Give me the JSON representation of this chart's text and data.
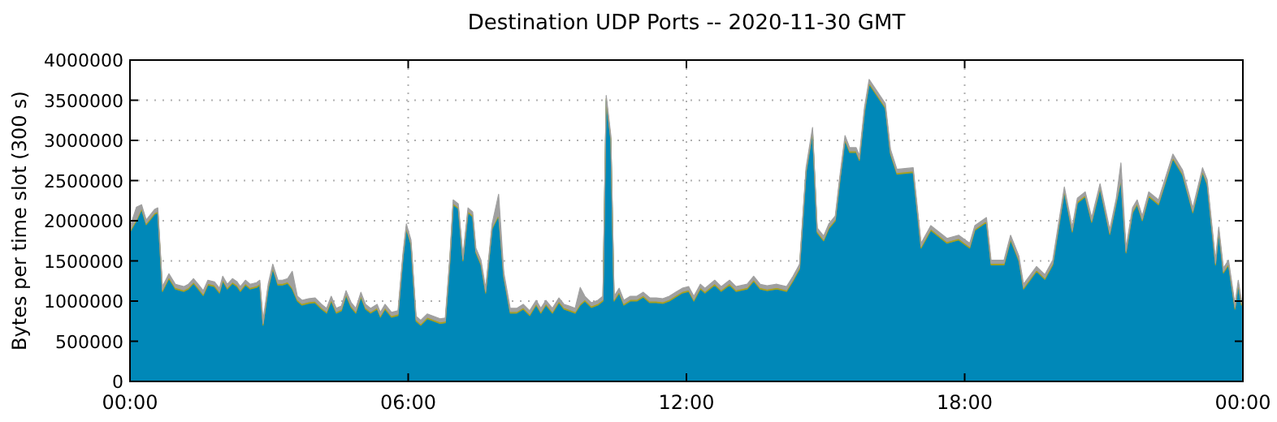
{
  "chart_data": {
    "type": "area",
    "stacked": true,
    "title": "Destination UDP Ports -- 2020-11-30 GMT",
    "ylabel": "Bytes per time slot (300 s)",
    "x": [
      0,
      0.14,
      0.25,
      0.35,
      0.53,
      0.6,
      0.7,
      0.84,
      0.98,
      1.16,
      1.26,
      1.37,
      1.47,
      1.58,
      1.68,
      1.82,
      1.93,
      2.0,
      2.1,
      2.21,
      2.31,
      2.38,
      2.49,
      2.59,
      2.73,
      2.8,
      2.87,
      2.98,
      3.08,
      3.19,
      3.29,
      3.4,
      3.5,
      3.61,
      3.71,
      3.85,
      3.99,
      4.13,
      4.24,
      4.34,
      4.45,
      4.56,
      4.66,
      4.77,
      4.87,
      4.98,
      5.08,
      5.19,
      5.33,
      5.4,
      5.5,
      5.64,
      5.78,
      5.89,
      5.96,
      6.06,
      6.17,
      6.27,
      6.41,
      6.55,
      6.69,
      6.8,
      6.9,
      6.97,
      7.08,
      7.18,
      7.29,
      7.39,
      7.46,
      7.57,
      7.67,
      7.81,
      7.95,
      8.06,
      8.2,
      8.34,
      8.48,
      8.62,
      8.76,
      8.86,
      8.97,
      9.11,
      9.25,
      9.36,
      9.46,
      9.6,
      9.71,
      9.81,
      9.95,
      10.09,
      10.2,
      10.27,
      10.37,
      10.44,
      10.55,
      10.65,
      10.79,
      10.93,
      11.07,
      11.21,
      11.35,
      11.49,
      11.63,
      11.77,
      11.91,
      12.05,
      12.16,
      12.3,
      12.4,
      12.61,
      12.75,
      12.93,
      13.07,
      13.31,
      13.45,
      13.59,
      13.74,
      13.95,
      14.16,
      14.3,
      14.44,
      14.58,
      14.72,
      14.82,
      14.96,
      15.07,
      15.21,
      15.31,
      15.42,
      15.52,
      15.66,
      15.73,
      15.84,
      15.94,
      16.29,
      16.4,
      16.54,
      16.89,
      17.06,
      17.27,
      17.62,
      17.87,
      18.11,
      18.22,
      18.47,
      18.57,
      18.85,
      18.99,
      19.17,
      19.27,
      19.55,
      19.73,
      19.9,
      20.15,
      20.32,
      20.43,
      20.6,
      20.74,
      20.92,
      21.13,
      21.27,
      21.37,
      21.48,
      21.62,
      21.72,
      21.83,
      21.97,
      22.18,
      22.49,
      22.7,
      22.92,
      23.13,
      23.23,
      23.41,
      23.48,
      23.58,
      23.69,
      23.83,
      23.9,
      23.97
    ],
    "series": [
      {
        "color": "#0088b8",
        "values": [
          1860000,
          2000000,
          2140000,
          1950000,
          2080000,
          2100000,
          1120000,
          1280000,
          1150000,
          1120000,
          1150000,
          1220000,
          1150000,
          1070000,
          1200000,
          1180000,
          1100000,
          1250000,
          1150000,
          1220000,
          1180000,
          1120000,
          1200000,
          1150000,
          1170000,
          1200000,
          700000,
          1150000,
          1400000,
          1200000,
          1200000,
          1220000,
          1150000,
          1000000,
          950000,
          970000,
          980000,
          900000,
          850000,
          1000000,
          850000,
          880000,
          1070000,
          920000,
          850000,
          1050000,
          900000,
          850000,
          900000,
          800000,
          900000,
          800000,
          820000,
          1550000,
          1900000,
          1700000,
          750000,
          700000,
          780000,
          750000,
          720000,
          730000,
          1500000,
          2200000,
          2150000,
          1500000,
          2100000,
          2050000,
          1600000,
          1450000,
          1100000,
          1900000,
          2060000,
          1300000,
          850000,
          850000,
          900000,
          820000,
          950000,
          850000,
          950000,
          850000,
          980000,
          900000,
          880000,
          850000,
          950000,
          1000000,
          920000,
          950000,
          1000000,
          3500000,
          3000000,
          1000000,
          1100000,
          950000,
          1000000,
          1000000,
          1050000,
          980000,
          980000,
          970000,
          1000000,
          1050000,
          1100000,
          1120000,
          1000000,
          1150000,
          1100000,
          1200000,
          1120000,
          1200000,
          1120000,
          1150000,
          1250000,
          1150000,
          1130000,
          1150000,
          1120000,
          1250000,
          1400000,
          2600000,
          3100000,
          1850000,
          1750000,
          1900000,
          2000000,
          2500000,
          3000000,
          2850000,
          2850000,
          2750000,
          3350000,
          3700000,
          3400000,
          2830000,
          2580000,
          2600000,
          1660000,
          1880000,
          1720000,
          1760000,
          1660000,
          1880000,
          1980000,
          1450000,
          1450000,
          1760000,
          1500000,
          1150000,
          1370000,
          1270000,
          1450000,
          2360000,
          1860000,
          2220000,
          2300000,
          1980000,
          2400000,
          1830000,
          2220000,
          2500000,
          1600000,
          2100000,
          2200000,
          2000000,
          2300000,
          2200000,
          2770000,
          2570000,
          2100000,
          2600000,
          2450000,
          1450000,
          1860000,
          1350000,
          1450000,
          900000,
          1200000,
          950000
        ]
      },
      {
        "color": "#a8a020",
        "values": [
          20000,
          20000,
          20000,
          20000,
          20000,
          20000,
          20000,
          20000,
          20000,
          20000,
          20000,
          20000,
          20000,
          20000,
          20000,
          20000,
          20000,
          20000,
          20000,
          20000,
          20000,
          20000,
          20000,
          20000,
          20000,
          20000,
          20000,
          20000,
          20000,
          20000,
          20000,
          20000,
          20000,
          20000,
          20000,
          20000,
          20000,
          20000,
          20000,
          20000,
          20000,
          20000,
          20000,
          20000,
          20000,
          20000,
          20000,
          20000,
          20000,
          20000,
          20000,
          20000,
          20000,
          20000,
          20000,
          20000,
          20000,
          20000,
          20000,
          20000,
          20000,
          20000,
          20000,
          20000,
          20000,
          20000,
          20000,
          20000,
          20000,
          20000,
          20000,
          20000,
          20000,
          20000,
          20000,
          20000,
          20000,
          20000,
          20000,
          20000,
          20000,
          20000,
          20000,
          20000,
          20000,
          20000,
          20000,
          20000,
          20000,
          20000,
          20000,
          20000,
          20000,
          20000,
          20000,
          20000,
          20000,
          20000,
          20000,
          20000,
          20000,
          20000,
          20000,
          20000,
          20000,
          20000,
          20000,
          20000,
          20000,
          20000,
          20000,
          20000,
          20000,
          20000,
          20000,
          20000,
          20000,
          20000,
          20000,
          20000,
          20000,
          20000,
          20000,
          20000,
          20000,
          20000,
          20000,
          20000,
          20000,
          20000,
          20000,
          20000,
          20000,
          20000,
          20000,
          20000,
          20000,
          20000,
          20000,
          20000,
          20000,
          20000,
          20000,
          20000,
          20000,
          20000,
          20000,
          20000,
          20000,
          20000,
          20000,
          20000,
          20000,
          20000,
          20000,
          20000,
          20000,
          20000,
          20000,
          20000,
          20000,
          20000,
          20000,
          20000,
          20000,
          20000,
          20000,
          20000,
          20000,
          20000,
          20000,
          20000,
          20000,
          20000,
          20000,
          20000,
          20000,
          20000,
          20000,
          20000
        ]
      },
      {
        "color": "#a0a0a0",
        "values": [
          40000,
          150000,
          40000,
          40000,
          40000,
          40000,
          40000,
          40000,
          40000,
          40000,
          40000,
          40000,
          40000,
          40000,
          40000,
          40000,
          40000,
          40000,
          40000,
          40000,
          40000,
          40000,
          40000,
          40000,
          40000,
          40000,
          40000,
          40000,
          40000,
          40000,
          40000,
          40000,
          200000,
          40000,
          40000,
          40000,
          40000,
          40000,
          40000,
          40000,
          40000,
          40000,
          40000,
          40000,
          40000,
          40000,
          40000,
          40000,
          40000,
          40000,
          40000,
          40000,
          40000,
          40000,
          40000,
          40000,
          40000,
          40000,
          40000,
          40000,
          40000,
          40000,
          40000,
          40000,
          40000,
          40000,
          40000,
          40000,
          40000,
          40000,
          40000,
          40000,
          250000,
          40000,
          40000,
          40000,
          40000,
          40000,
          40000,
          40000,
          40000,
          40000,
          40000,
          40000,
          40000,
          40000,
          200000,
          40000,
          40000,
          40000,
          40000,
          40000,
          40000,
          40000,
          40000,
          40000,
          40000,
          40000,
          40000,
          40000,
          40000,
          40000,
          40000,
          40000,
          40000,
          40000,
          40000,
          40000,
          40000,
          40000,
          40000,
          40000,
          40000,
          40000,
          40000,
          40000,
          40000,
          40000,
          40000,
          40000,
          40000,
          40000,
          40000,
          40000,
          40000,
          40000,
          40000,
          40000,
          40000,
          40000,
          40000,
          40000,
          40000,
          40000,
          40000,
          40000,
          40000,
          40000,
          40000,
          40000,
          40000,
          40000,
          40000,
          40000,
          40000,
          40000,
          40000,
          40000,
          40000,
          40000,
          40000,
          40000,
          40000,
          40000,
          40000,
          40000,
          40000,
          40000,
          40000,
          40000,
          40000,
          200000,
          40000,
          40000,
          40000,
          40000,
          40000,
          40000,
          40000,
          40000,
          40000,
          40000,
          40000,
          40000,
          40000,
          40000,
          40000,
          40000,
          40000,
          40000
        ]
      }
    ],
    "xlim": [
      0,
      24
    ],
    "xticks": [
      {
        "value": 0,
        "label": "00:00"
      },
      {
        "value": 6,
        "label": "06:00"
      },
      {
        "value": 12,
        "label": "12:00"
      },
      {
        "value": 18,
        "label": "18:00"
      },
      {
        "value": 24,
        "label": "00:00"
      }
    ],
    "ylim": [
      0,
      4000000
    ],
    "yticks": [
      0,
      500000,
      1000000,
      1500000,
      2000000,
      2500000,
      3000000,
      3500000,
      4000000
    ],
    "grid": true
  }
}
